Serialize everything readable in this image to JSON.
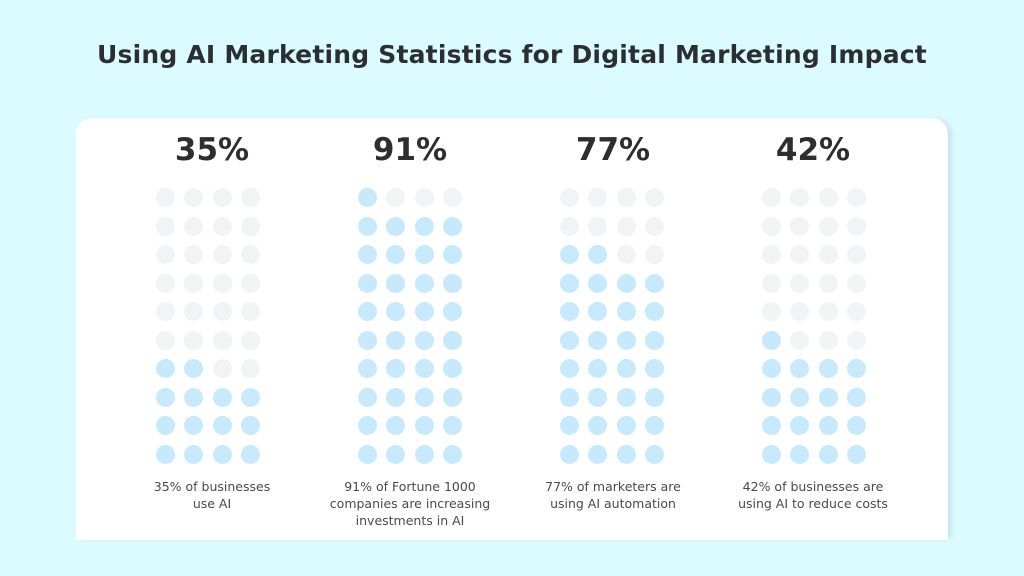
{
  "title": "Using AI Marketing Statistics for Digital Marketing Impact",
  "colors": {
    "background": "#dcfbfe",
    "card": "#ffffff",
    "dot_filled": "#c7e9fb",
    "dot_empty": "#f2f3f4",
    "text": "#2b2f33"
  },
  "stats": [
    {
      "value": "35%",
      "caption_line1": "35% of businesses",
      "caption_line2": "use AI",
      "caption_line3": ""
    },
    {
      "value": "91%",
      "caption_line1": "91% of Fortune 1000",
      "caption_line2": "companies are increasing",
      "caption_line3": "investments in AI"
    },
    {
      "value": "77%",
      "caption_line1": "77% of marketers are",
      "caption_line2": "using AI automation",
      "caption_line3": ""
    },
    {
      "value": "42%",
      "caption_line1": "42% of businesses are",
      "caption_line2": "using AI to reduce costs",
      "caption_line3": ""
    }
  ],
  "chart_data": {
    "type": "bar",
    "subtype": "dot-matrix waffle (10 rows x 4 columns, fill from bottom)",
    "title": "Using AI Marketing Statistics for Digital Marketing Impact",
    "categories": [
      "35% of businesses use AI",
      "91% of Fortune 1000 companies are increasing investments in AI",
      "77% of marketers are using AI automation",
      "42% of businesses are using AI to reduce costs"
    ],
    "values": [
      35,
      91,
      77,
      42
    ],
    "filled_dots": [
      14,
      37,
      30,
      17
    ],
    "total_dots": 40,
    "unit": "%",
    "ylim": [
      0,
      100
    ],
    "xlabel": "",
    "ylabel": "",
    "grid": false,
    "legend": null
  }
}
